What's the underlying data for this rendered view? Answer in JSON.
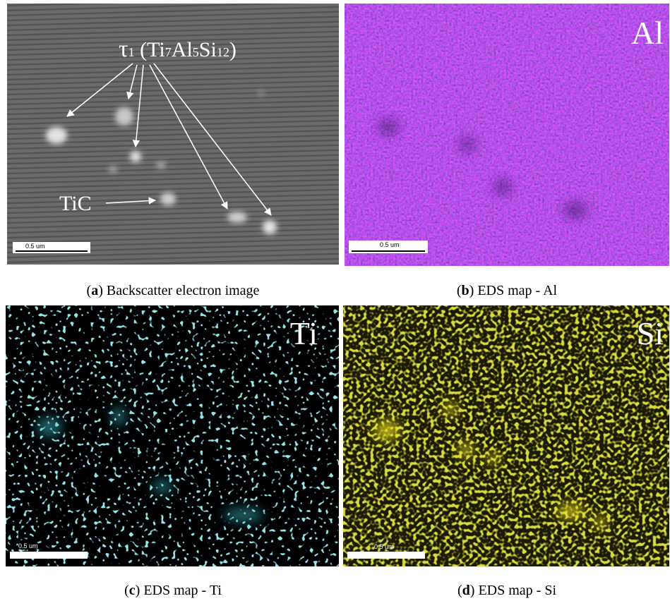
{
  "panels": [
    {
      "id": "a",
      "caption_parts": [
        "(",
        "a",
        ") Backscatter electron image"
      ],
      "scale_bar": "0.5 um",
      "phase_label_parts": [
        "τ",
        "1",
        " (Ti",
        "7",
        "Al",
        "5",
        "Si",
        "12",
        ")"
      ],
      "tic_label": "TiC"
    },
    {
      "id": "b",
      "caption_parts": [
        "(",
        "b",
        ") EDS map - Al"
      ],
      "scale_bar": "0.5 um",
      "element": "Al"
    },
    {
      "id": "c",
      "caption_parts": [
        "(",
        "c",
        ") EDS map - Ti"
      ],
      "scale_bar": "0.5 um",
      "element": "Ti"
    },
    {
      "id": "d",
      "caption_parts": [
        "(",
        "d",
        ") EDS map - Si"
      ],
      "scale_bar": "0.5 um",
      "element": "Si"
    }
  ]
}
